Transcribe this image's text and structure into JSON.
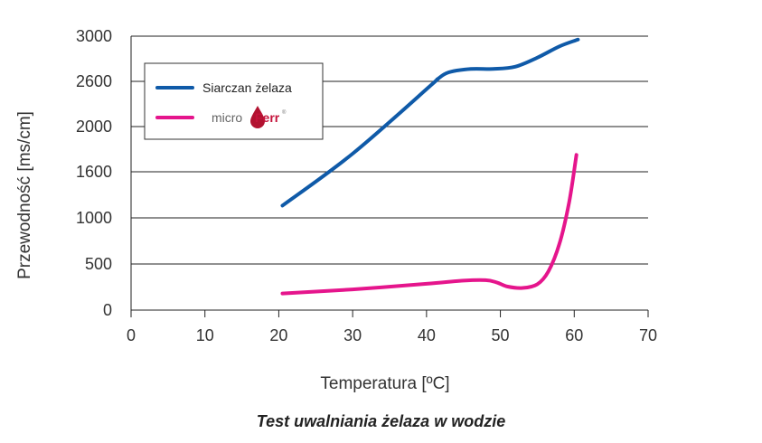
{
  "chart_data": {
    "type": "line",
    "title": "Test uwalniania żelaza w wodzie",
    "xlabel": "Temperatura [ºC]",
    "ylabel": "Przewodność [ms/cm]",
    "xlim": [
      0,
      70
    ],
    "x_ticks": [
      "0",
      "10",
      "20",
      "30",
      "40",
      "50",
      "60",
      "70"
    ],
    "y_ticks": [
      "0",
      "500",
      "1000",
      "1600",
      "2000",
      "2600",
      "3000"
    ],
    "grid": true,
    "legend_position": "top-left",
    "series": [
      {
        "name": "Siarczan żelaza",
        "color": "#0f5aa8",
        "points": [
          {
            "x": 20.5,
            "y": 1160
          },
          {
            "x": 30,
            "y": 1760
          },
          {
            "x": 40.5,
            "y": 2540
          },
          {
            "x": 41.5,
            "y": 2620
          },
          {
            "x": 43,
            "y": 2680
          },
          {
            "x": 46,
            "y": 2710
          },
          {
            "x": 49,
            "y": 2710
          },
          {
            "x": 52,
            "y": 2730
          },
          {
            "x": 55,
            "y": 2810
          },
          {
            "x": 58,
            "y": 2910
          },
          {
            "x": 60.5,
            "y": 2970
          }
        ]
      },
      {
        "name": "microFerr",
        "brand_parts": [
          "micro",
          "Ferr",
          "®"
        ],
        "color": "#e5158c",
        "points": [
          {
            "x": 20.5,
            "y": 180
          },
          {
            "x": 30,
            "y": 225
          },
          {
            "x": 40,
            "y": 285
          },
          {
            "x": 45,
            "y": 320
          },
          {
            "x": 48,
            "y": 325
          },
          {
            "x": 49.5,
            "y": 300
          },
          {
            "x": 51,
            "y": 255
          },
          {
            "x": 53,
            "y": 240
          },
          {
            "x": 55,
            "y": 280
          },
          {
            "x": 56.5,
            "y": 420
          },
          {
            "x": 58,
            "y": 720
          },
          {
            "x": 59.3,
            "y": 1200
          },
          {
            "x": 60.3,
            "y": 1750
          }
        ]
      }
    ]
  }
}
